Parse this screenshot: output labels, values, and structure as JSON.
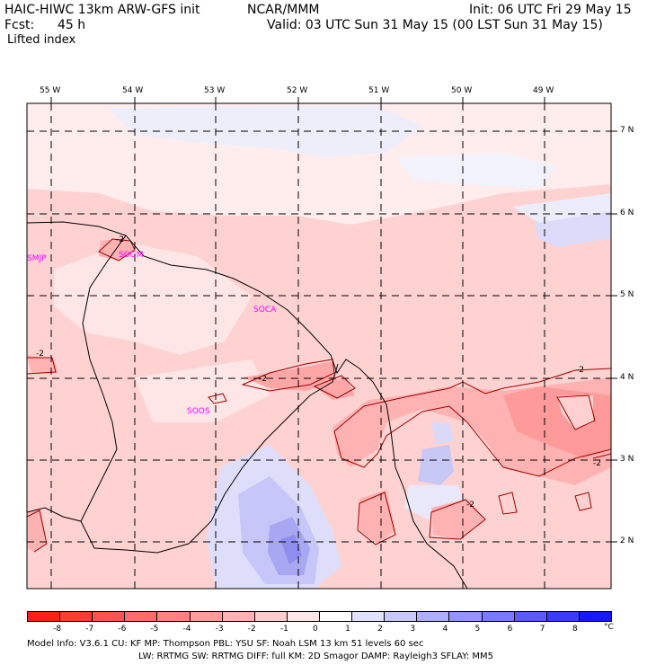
{
  "header": {
    "title_left": "HAIC-HIWC 13km ARW-GFS init",
    "center": "NCAR/MMM",
    "init": "Init: 06 UTC Fri 29 May 15",
    "fcst_label": "Fcst:",
    "fcst_value": "45 h",
    "valid": "Valid: 03 UTC Sun 31 May 15 (00 LST Sun 31 May 15)",
    "field": "Lifted index"
  },
  "map": {
    "lon_labels": [
      "55 W",
      "54 W",
      "53 W",
      "52 W",
      "51 W",
      "50 W",
      "49 W"
    ],
    "lat_labels": [
      "7 N",
      "6 N",
      "5 N",
      "4 N",
      "3 N",
      "2 N"
    ],
    "stations": [
      {
        "id": "SMJP"
      },
      {
        "id": "SOGM"
      },
      {
        "id": "SOCA"
      },
      {
        "id": "SOOS"
      }
    ],
    "contour_labels": [
      "-2",
      "-2",
      "-2",
      "-2",
      "-2",
      "-2"
    ]
  },
  "colorbar": {
    "ticks": [
      "-8",
      "-7",
      "-6",
      "-5",
      "-4",
      "-3",
      "-2",
      "-1",
      "0",
      "1",
      "2",
      "3",
      "4",
      "5",
      "6",
      "7",
      "8"
    ],
    "unit": "°C",
    "colors": [
      "#ff1f1f",
      "#ff3a3a",
      "#ff5252",
      "#ff6a6a",
      "#ff8282",
      "#ff9c9c",
      "#ffb4b4",
      "#ffcccc",
      "#ffe6e6",
      "#ffffff",
      "#e2e2ff",
      "#c8c8ff",
      "#aeaeff",
      "#9494ff",
      "#7a7aff",
      "#5a5aff",
      "#3b3bff",
      "#1818ff"
    ]
  },
  "footer": {
    "line1": "Model Info: V3.6.1    CU: KF      MP: Thompson     PBL: YSU       SF: Noah LSM     13 km   51 levels  60 sec",
    "line2": "LW: RRTMG    SW: RRTMG   DIFF: full   KM: 2D Smagor DAMP: Rayleigh3   SFLAY: MM5"
  }
}
